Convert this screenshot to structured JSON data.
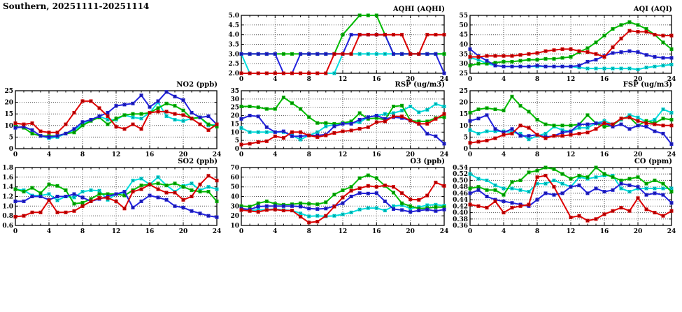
{
  "page": {
    "title": "Southern, 20251111-20251114"
  },
  "palette": {
    "red": "#dd0000",
    "green": "#00bb00",
    "blue": "#2222dd",
    "cyan": "#00dddd"
  },
  "chart_data": [
    {
      "id": "aqhi",
      "type": "line",
      "title": "AQHI (AQHI)",
      "xlim": [
        0,
        24
      ],
      "xtick": 4,
      "ylim": [
        2.0,
        5.0
      ],
      "ytick": 0.5,
      "y_decimals": 1,
      "grid": "dotted",
      "legend": "none",
      "series": [
        {
          "name": "cyan",
          "color": "#00dddd",
          "values": [
            3,
            2,
            2,
            2,
            2,
            2,
            2,
            2,
            2,
            2,
            2,
            2,
            3,
            3,
            3,
            3,
            3,
            3,
            3,
            3,
            3,
            3,
            3,
            3,
            3
          ]
        },
        {
          "name": "green",
          "color": "#00bb00",
          "values": [
            3,
            3,
            3,
            3,
            3,
            3,
            3,
            3,
            3,
            3,
            3,
            3,
            4,
            null,
            5,
            5,
            5,
            4,
            3,
            3,
            3,
            3,
            3,
            3,
            3
          ]
        },
        {
          "name": "blue",
          "color": "#2222dd",
          "values": [
            3,
            3,
            3,
            3,
            3,
            2,
            2,
            3,
            3,
            3,
            3,
            3,
            3,
            4,
            4,
            4,
            4,
            4,
            3,
            3,
            3,
            3,
            3,
            3,
            2
          ]
        },
        {
          "name": "red",
          "color": "#dd0000",
          "values": [
            2,
            2,
            2,
            2,
            2,
            2,
            2,
            2,
            2,
            2,
            2,
            3,
            3,
            3,
            4,
            4,
            4,
            4,
            4,
            4,
            3,
            3,
            4,
            4,
            4
          ]
        }
      ]
    },
    {
      "id": "aqi",
      "type": "line",
      "title": "AQI (AQI)",
      "xlim": [
        0,
        24
      ],
      "xtick": 4,
      "ylim": [
        25,
        55
      ],
      "ytick": 5,
      "y_decimals": 0,
      "grid": "dotted",
      "legend": "none",
      "series": [
        {
          "name": "cyan",
          "color": "#00dddd",
          "values": [
            33,
            32,
            30,
            29,
            28.5,
            28.5,
            28.5,
            28.5,
            28.5,
            28.5,
            28.5,
            28.5,
            28.5,
            28,
            27.5,
            27.5,
            27.5,
            27.5,
            27.5,
            27.5,
            27,
            28,
            28.5,
            29,
            29.5
          ]
        },
        {
          "name": "green",
          "color": "#00bb00",
          "values": [
            29,
            30,
            30,
            30.5,
            31,
            31,
            31.5,
            32,
            32,
            32.5,
            32.5,
            33,
            33.5,
            36,
            38,
            41,
            44.5,
            48,
            50,
            51.5,
            50,
            48,
            45,
            41,
            37.5
          ]
        },
        {
          "name": "blue",
          "color": "#2222dd",
          "values": [
            37.5,
            34,
            31.5,
            29,
            28.5,
            28.5,
            28.5,
            28.5,
            29,
            28.5,
            28.5,
            28.5,
            28.5,
            29,
            31,
            32,
            34,
            35.5,
            36,
            36.5,
            36,
            34.5,
            33.5,
            33,
            33
          ]
        },
        {
          "name": "red",
          "color": "#dd0000",
          "values": [
            33.5,
            33.5,
            34,
            34,
            34,
            34,
            34.5,
            35,
            35.5,
            36.5,
            37,
            37.5,
            37.5,
            36.5,
            36,
            35,
            33.5,
            38.5,
            43,
            47,
            46.5,
            46.5,
            45,
            44.5,
            44.5
          ]
        }
      ]
    },
    {
      "id": "no2",
      "type": "line",
      "title": "NO2 (ppb)",
      "xlim": [
        0,
        24
      ],
      "xtick": 4,
      "ylim": [
        0,
        25
      ],
      "ytick": 5,
      "y_decimals": 0,
      "grid": "dotted",
      "legend": "none",
      "series": [
        {
          "name": "cyan",
          "color": "#00dddd",
          "values": [
            9,
            9.5,
            8,
            5.5,
            4.5,
            5,
            6.5,
            8,
            10.5,
            12.5,
            14,
            12.5,
            12.5,
            14.5,
            13.5,
            13,
            15.5,
            20,
            14,
            12.5,
            12,
            13,
            13.5,
            10,
            10.5
          ]
        },
        {
          "name": "green",
          "color": "#00bb00",
          "values": [
            9.5,
            9,
            6.5,
            5.5,
            5.5,
            5.5,
            6.5,
            7,
            10,
            12,
            13.5,
            10.5,
            13,
            14.5,
            15,
            15,
            15.5,
            17.5,
            19.5,
            18.5,
            16.5,
            13,
            13.5,
            10.5,
            9.5
          ]
        },
        {
          "name": "blue",
          "color": "#2222dd",
          "values": [
            9,
            9.5,
            8,
            5.5,
            5,
            5.5,
            6.5,
            8.5,
            11.5,
            12.5,
            14,
            15.5,
            18.5,
            19,
            19.5,
            23,
            18,
            20.5,
            24.5,
            22.5,
            21,
            15.5,
            13.5,
            14,
            10.5
          ]
        },
        {
          "name": "red",
          "color": "#dd0000",
          "values": [
            11,
            10.5,
            11,
            7.5,
            7,
            7,
            10.5,
            15.5,
            20.5,
            20.5,
            17.5,
            14,
            9.5,
            8.5,
            10.5,
            8.5,
            15.5,
            16,
            16,
            15,
            14.5,
            13,
            10.5,
            8,
            10.5
          ]
        }
      ]
    },
    {
      "id": "rsp",
      "type": "line",
      "title": "RSP (ug/m3)",
      "xlim": [
        0,
        24
      ],
      "xtick": 4,
      "ylim": [
        0,
        35
      ],
      "ytick": 5,
      "y_decimals": 0,
      "grid": "dotted",
      "legend": "none",
      "series": [
        {
          "name": "cyan",
          "color": "#00dddd",
          "values": [
            12.5,
            10,
            10,
            10,
            10,
            10,
            8,
            5.5,
            8,
            10,
            13.5,
            14.5,
            15.5,
            15.5,
            16,
            19,
            20,
            21,
            21.5,
            23,
            25.5,
            22,
            23.5,
            27,
            25.5
          ]
        },
        {
          "name": "green",
          "color": "#00bb00",
          "values": [
            25.5,
            25.5,
            25,
            24,
            24,
            31,
            27.5,
            24,
            19,
            15.5,
            15.5,
            15,
            15.5,
            16.5,
            21.5,
            18,
            18.5,
            17.5,
            25.5,
            26,
            17,
            16.5,
            16.5,
            18.5,
            19
          ]
        },
        {
          "name": "blue",
          "color": "#2222dd",
          "values": [
            18,
            20,
            19.5,
            13,
            10,
            10.5,
            7.5,
            7.5,
            8,
            8,
            8.5,
            13.5,
            15,
            15,
            17.5,
            19,
            20,
            18,
            19,
            18.5,
            17,
            15,
            9,
            7.5,
            3
          ]
        },
        {
          "name": "red",
          "color": "#dd0000",
          "values": [
            2.5,
            3,
            4,
            4.5,
            7.5,
            6.5,
            10,
            10,
            8,
            7,
            8,
            9.5,
            10.5,
            11,
            12,
            13,
            16,
            16.5,
            19.5,
            19.5,
            17,
            15,
            15,
            18,
            21
          ]
        }
      ]
    },
    {
      "id": "fsp",
      "type": "line",
      "title": "FSP (ug/m3)",
      "xlim": [
        0,
        24
      ],
      "xtick": 4,
      "ylim": [
        0,
        25
      ],
      "ytick": 5,
      "y_decimals": 0,
      "grid": "dotted",
      "legend": "none",
      "series": [
        {
          "name": "cyan",
          "color": "#00dddd",
          "values": [
            8,
            6.5,
            7.5,
            7.5,
            7.5,
            7,
            6.5,
            4,
            5.5,
            6.5,
            9.5,
            8,
            7.5,
            9,
            9,
            11,
            12,
            10.5,
            12.5,
            14.5,
            13.5,
            11.5,
            12.5,
            17,
            15.5
          ]
        },
        {
          "name": "green",
          "color": "#00bb00",
          "values": [
            15.5,
            17,
            17.5,
            17,
            16.5,
            22.5,
            18.5,
            16,
            12.5,
            10.5,
            10,
            10,
            10,
            10.5,
            14.5,
            11,
            9.5,
            10,
            13,
            13.5,
            10,
            12,
            11,
            13,
            12.5
          ]
        },
        {
          "name": "blue",
          "color": "#2222dd",
          "values": [
            12,
            13,
            14.5,
            8.5,
            7,
            8.5,
            5.5,
            5.5,
            6,
            5,
            5.5,
            7,
            7.5,
            10.5,
            10.5,
            11,
            11,
            9.5,
            10.5,
            8.5,
            10,
            9.5,
            7.5,
            6.5,
            2
          ]
        },
        {
          "name": "red",
          "color": "#dd0000",
          "values": [
            2.5,
            3,
            3.5,
            4.5,
            6,
            6.5,
            10,
            9,
            6,
            4.5,
            5.5,
            5.5,
            6,
            6.5,
            7,
            8.5,
            11,
            10.5,
            13,
            13.5,
            12,
            11,
            10.5,
            10,
            10
          ]
        }
      ]
    },
    {
      "id": "so2",
      "type": "line",
      "title": "SO2 (ppb)",
      "xlim": [
        0,
        24
      ],
      "xtick": 4,
      "ylim": [
        0.6,
        1.8
      ],
      "ytick": 0.2,
      "y_decimals": 1,
      "grid": "dotted",
      "legend": "none",
      "series": [
        {
          "name": "cyan",
          "color": "#00dddd",
          "values": [
            1.35,
            1.33,
            1.22,
            1.22,
            1.25,
            1.12,
            1.2,
            1.18,
            1.3,
            1.33,
            1.32,
            1.13,
            1.25,
            1.28,
            1.53,
            1.57,
            1.45,
            1.6,
            1.43,
            1.3,
            1.42,
            1.47,
            1.33,
            1.4,
            1.35
          ]
        },
        {
          "name": "green",
          "color": "#00bb00",
          "values": [
            1.35,
            1.3,
            1.38,
            1.27,
            1.45,
            1.42,
            1.33,
            1.05,
            1.07,
            1.15,
            1.25,
            1.25,
            1.25,
            1.22,
            1.33,
            1.43,
            1.45,
            1.47,
            1.43,
            1.47,
            1.4,
            1.33,
            1.3,
            1.3,
            1.1
          ]
        },
        {
          "name": "blue",
          "color": "#2222dd",
          "values": [
            1.1,
            1.1,
            1.2,
            1.2,
            1.13,
            1.2,
            1.2,
            1.25,
            1.18,
            1.1,
            1.15,
            1.2,
            1.25,
            1.3,
            0.97,
            1.1,
            1.22,
            1.18,
            1.13,
            1.0,
            0.97,
            0.9,
            0.85,
            0.8,
            0.77
          ]
        },
        {
          "name": "red",
          "color": "#dd0000",
          "values": [
            0.78,
            0.8,
            0.87,
            0.87,
            1.12,
            0.87,
            0.87,
            0.9,
            1.0,
            1.1,
            1.17,
            1.17,
            1.1,
            0.95,
            1.3,
            1.35,
            1.45,
            1.35,
            1.28,
            1.28,
            1.13,
            1.2,
            1.45,
            1.63,
            1.53
          ]
        }
      ]
    },
    {
      "id": "o3",
      "type": "line",
      "title": "O3 (ppb)",
      "xlim": [
        0,
        24
      ],
      "xtick": 4,
      "ylim": [
        10,
        70
      ],
      "ytick": 10,
      "y_decimals": 0,
      "grid": "dotted",
      "legend": "none",
      "series": [
        {
          "name": "cyan",
          "color": "#00dddd",
          "values": [
            26,
            25.5,
            26,
            26.5,
            27,
            26,
            25.5,
            22.5,
            19.5,
            20,
            19.5,
            20,
            21.5,
            23.5,
            26.5,
            28,
            28,
            25.5,
            30,
            31,
            27.5,
            29,
            31,
            31.5,
            30.5
          ]
        },
        {
          "name": "green",
          "color": "#00bb00",
          "values": [
            30,
            29.5,
            33,
            35,
            32.5,
            31.5,
            32,
            33,
            32.5,
            32,
            34,
            42,
            46.5,
            50,
            59,
            62,
            59,
            51,
            44,
            33,
            30,
            27.5,
            28,
            29,
            29
          ]
        },
        {
          "name": "blue",
          "color": "#2222dd",
          "values": [
            27.5,
            26.5,
            29.5,
            30,
            30,
            30,
            30,
            29.5,
            27.5,
            27,
            27.5,
            30,
            33,
            40,
            43.5,
            43,
            43.5,
            35,
            27,
            26,
            24,
            25.5,
            26.5,
            25,
            26.5
          ]
        },
        {
          "name": "red",
          "color": "#dd0000",
          "values": [
            26,
            25,
            24,
            26,
            26.5,
            25.5,
            25.5,
            19,
            13,
            14,
            20,
            29.5,
            39,
            46,
            48.5,
            51,
            50,
            51.5,
            50,
            43.5,
            37,
            36.5,
            41,
            54.5,
            51
          ]
        }
      ]
    },
    {
      "id": "co",
      "type": "line",
      "title": "CO (ppm)",
      "xlim": [
        0,
        24
      ],
      "xtick": 4,
      "ylim": [
        0.36,
        0.54
      ],
      "ytick": 0.02,
      "y_decimals": 2,
      "grid": "dotted",
      "legend": "none",
      "series": [
        {
          "name": "cyan",
          "color": "#00dddd",
          "values": [
            0.52,
            0.505,
            0.5,
            0.485,
            0.475,
            0.475,
            0.47,
            0.465,
            0.49,
            0.49,
            0.5,
            0.49,
            0.48,
            0.51,
            0.505,
            0.51,
            0.515,
            0.515,
            0.475,
            0.465,
            0.475,
            0.475,
            0.475,
            0.475,
            0.475
          ]
        },
        {
          "name": "green",
          "color": "#00bb00",
          "values": [
            0.475,
            0.48,
            0.47,
            0.47,
            0.455,
            0.495,
            0.5,
            0.525,
            0.53,
            0.54,
            0.535,
            0.52,
            0.505,
            0.515,
            0.51,
            0.54,
            0.52,
            0.51,
            0.5,
            0.505,
            0.51,
            0.49,
            0.5,
            0.49,
            0.465
          ]
        },
        {
          "name": "blue",
          "color": "#2222dd",
          "values": [
            0.46,
            0.47,
            0.45,
            0.44,
            0.435,
            0.43,
            0.425,
            0.42,
            0.44,
            0.46,
            0.455,
            0.46,
            0.48,
            0.485,
            0.46,
            0.475,
            0.465,
            0.47,
            0.49,
            0.485,
            0.48,
            0.455,
            0.46,
            0.455,
            0.43
          ]
        },
        {
          "name": "red",
          "color": "#dd0000",
          "values": [
            0.425,
            0.42,
            0.415,
            0.435,
            0.4,
            0.415,
            0.42,
            0.425,
            0.51,
            0.515,
            0.48,
            null,
            0.385,
            0.39,
            0.375,
            0.38,
            0.395,
            0.405,
            0.415,
            0.405,
            0.445,
            0.41,
            0.4,
            0.39,
            0.405
          ]
        }
      ]
    }
  ]
}
